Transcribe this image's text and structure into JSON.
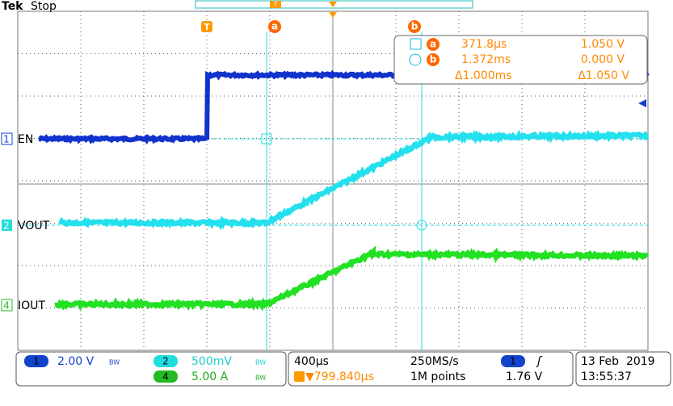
{
  "header": {
    "brand": "Tek",
    "status": "Stop"
  },
  "markers": {
    "trigger": "T",
    "cursor_a": "a",
    "cursor_b": "b",
    "record_trigger": "T"
  },
  "cursor_readout": [
    {
      "marker": "a",
      "time": "371.8µs",
      "value": "1.050 V"
    },
    {
      "marker": "b",
      "time": "1.372ms",
      "value": "0.000 V"
    },
    {
      "time": "Δ1.000ms",
      "value": "Δ1.050 V"
    }
  ],
  "channels": [
    {
      "number": "1",
      "label": "EN",
      "scale": "2.00 V",
      "bw": "BW"
    },
    {
      "number": "2",
      "label": "VOUT",
      "scale": "500mV",
      "bw": "BW"
    },
    {
      "number": "4",
      "label": "IOUT",
      "scale": "5.00 A",
      "bw": "BW"
    }
  ],
  "timebase": {
    "scale": "400µs",
    "sample_rate": "250MS/s",
    "trigger_position": "▼799.840µs",
    "record_length": "1M points"
  },
  "trigger": {
    "source": "1",
    "slope": "ʃ",
    "level": "1.76 V"
  },
  "datetime": {
    "date": "13 Feb  2019",
    "time": "13:55:37"
  }
}
